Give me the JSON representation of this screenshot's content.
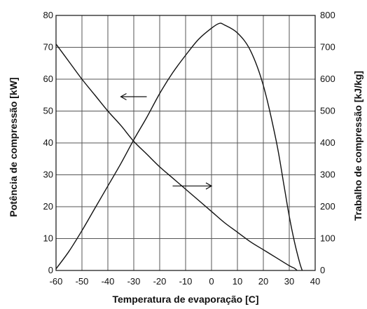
{
  "chart_data": {
    "type": "line",
    "xlabel": "Temperatura de evaporação [C]",
    "ylabel": "Potência de compressão [kW]",
    "y2label": "Trabalho de compressão [kJ/kg]",
    "xlim": [
      -60,
      40
    ],
    "ylim": [
      0,
      80
    ],
    "y2lim": [
      0,
      800
    ],
    "x_ticks": [
      "-60",
      "-50",
      "-40",
      "-30",
      "-20",
      "-10",
      "0",
      "10",
      "20",
      "30",
      "40"
    ],
    "y_ticks": [
      "0",
      "10",
      "20",
      "30",
      "40",
      "50",
      "60",
      "70",
      "80"
    ],
    "y2_ticks": [
      "0",
      "100",
      "200",
      "300",
      "400",
      "500",
      "600",
      "700",
      "800"
    ],
    "grid": true,
    "series": [
      {
        "axis": "left",
        "x": [
          -60,
          -55,
          -50,
          -45,
          -40,
          -35,
          -30,
          -25,
          -20,
          -15,
          -10,
          -5,
          0,
          3,
          5,
          10,
          15,
          20,
          25,
          28,
          30,
          32,
          34,
          35
        ],
        "y": [
          0.5,
          6,
          12.5,
          19.5,
          26.5,
          33.5,
          41,
          48,
          55.5,
          62,
          67.5,
          72.5,
          76,
          77.5,
          77,
          74.5,
          69,
          58,
          40.5,
          26.5,
          17,
          9,
          2.5,
          0
        ]
      },
      {
        "axis": "right",
        "x": [
          -60,
          -55,
          -50,
          -45,
          -40,
          -35,
          -30,
          -25,
          -20,
          -15,
          -10,
          -5,
          0,
          5,
          10,
          15,
          20,
          25,
          30,
          32,
          33
        ],
        "y": [
          710,
          655,
          600,
          550,
          500,
          455,
          405,
          365,
          325,
          290,
          255,
          220,
          185,
          150,
          120,
          90,
          65,
          40,
          15,
          7,
          0
        ]
      }
    ],
    "annotations": [
      {
        "type": "arrow",
        "direction": "left",
        "from": [
          -25,
          54.5
        ],
        "to": [
          -35,
          54.5
        ]
      },
      {
        "type": "arrow",
        "direction": "right",
        "from": [
          -15,
          26.5
        ],
        "to": [
          0,
          26.5
        ]
      }
    ]
  }
}
